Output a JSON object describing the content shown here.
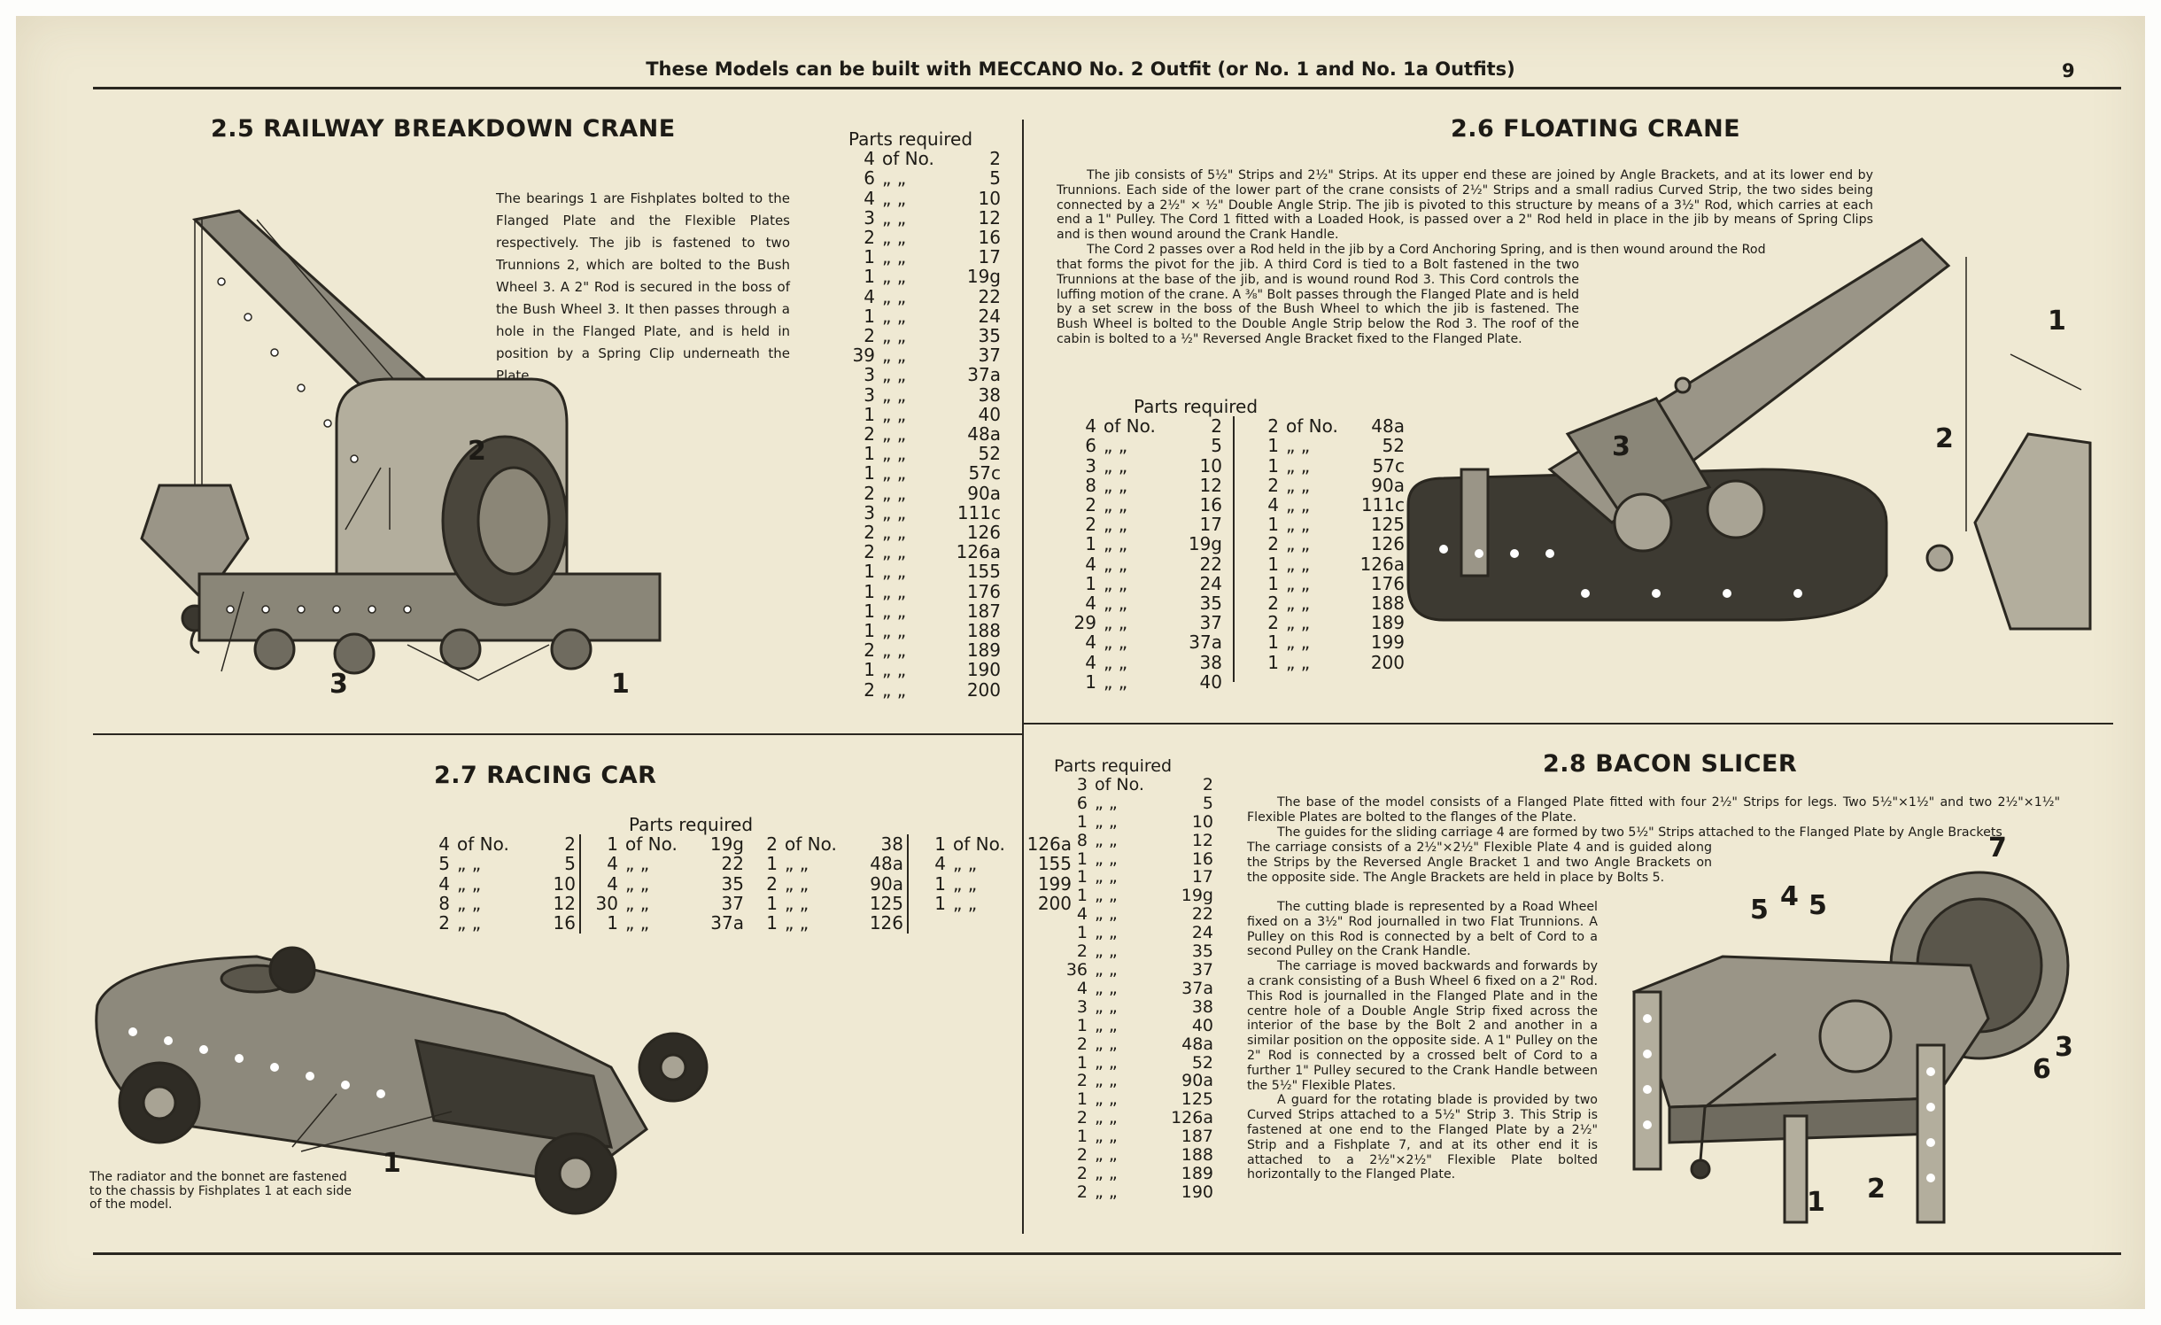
{
  "header": {
    "title": "These Models can be built with MECCANO No. 2 Outfit (or No. 1 and No. 1a Outfits)",
    "page_number": "9"
  },
  "sections": {
    "railway_crane": {
      "title": "2.5  RAILWAY BREAKDOWN CRANE",
      "description": "The bearings 1 are Fishplates bolted to the Flanged Plate and the Flexible Plates respectively. The jib is fastened to two Trunnions 2, which are bolted to the Bush Wheel 3. A 2\" Rod is secured in the boss of the Bush Wheel 3. It then passes through a hole in the Flanged Plate, and is held in position by a Spring Clip underneath the Plate.",
      "parts_heading": "Parts  required",
      "parts": [
        {
          "qty": "4",
          "of": "of No.",
          "no": "2"
        },
        {
          "qty": "6",
          "of": "„   „",
          "no": "5"
        },
        {
          "qty": "4",
          "of": "„   „",
          "no": "10"
        },
        {
          "qty": "3",
          "of": "„   „",
          "no": "12"
        },
        {
          "qty": "2",
          "of": "„   „",
          "no": "16"
        },
        {
          "qty": "1",
          "of": "„   „",
          "no": "17"
        },
        {
          "qty": "1",
          "of": "„   „",
          "no": "19g"
        },
        {
          "qty": "4",
          "of": "„   „",
          "no": "22"
        },
        {
          "qty": "1",
          "of": "„   „",
          "no": "24"
        },
        {
          "qty": "2",
          "of": "„   „",
          "no": "35"
        },
        {
          "qty": "39",
          "of": "„   „",
          "no": "37"
        },
        {
          "qty": "3",
          "of": "„   „",
          "no": "37a"
        },
        {
          "qty": "3",
          "of": "„   „",
          "no": "38"
        },
        {
          "qty": "1",
          "of": "„   „",
          "no": "40"
        },
        {
          "qty": "2",
          "of": "„   „",
          "no": "48a"
        },
        {
          "qty": "1",
          "of": "„   „",
          "no": "52"
        },
        {
          "qty": "1",
          "of": "„   „",
          "no": "57c"
        },
        {
          "qty": "2",
          "of": "„   „",
          "no": "90a"
        },
        {
          "qty": "3",
          "of": "„   „",
          "no": "111c"
        },
        {
          "qty": "2",
          "of": "„   „",
          "no": "126"
        },
        {
          "qty": "2",
          "of": "„   „",
          "no": "126a"
        },
        {
          "qty": "1",
          "of": "„   „",
          "no": "155"
        },
        {
          "qty": "1",
          "of": "„   „",
          "no": "176"
        },
        {
          "qty": "1",
          "of": "„   „",
          "no": "187"
        },
        {
          "qty": "1",
          "of": "„   „",
          "no": "188"
        },
        {
          "qty": "2",
          "of": "„   „",
          "no": "189"
        },
        {
          "qty": "1",
          "of": "„   „",
          "no": "190"
        },
        {
          "qty": "2",
          "of": "„   „",
          "no": "200"
        }
      ],
      "callouts": [
        "2",
        "3",
        "1"
      ]
    },
    "floating_crane": {
      "title": "2.6  FLOATING CRANE",
      "description_wide": [
        "The jib consists of 5½\" Strips and 2½\" Strips.  At its upper end these are joined by Angle Brackets, and at its lower end by Trunnions. Each side of the lower part of the crane consists of 2½\" Strips and a small radius Curved Strip, the two sides being connected by a 2½\" × ½\" Double Angle Strip. The jib is pivoted to this structure by means of a 3½\" Rod, which carries at each end a 1\" Pulley. The Cord 1 fitted with a Loaded Hook, is passed over a 2\" Rod held in place in the jib by means of Spring Clips and is then wound around the Crank Handle.",
        "The Cord 2 passes over a Rod held in the jib by a Cord Anchoring Spring, and is then wound around the Rod"
      ],
      "description_narrow": "that forms the pivot for the jib. A third Cord is tied to a Bolt fastened in the two Trunnions at the base of the jib, and is wound round Rod 3. This Cord controls the luffing motion of the crane.  A ⅜\" Bolt passes through the Flanged Plate and is held by a set screw in the boss of the Bush Wheel to which the jib is fastened. The Bush Wheel is bolted to the Double Angle Strip below the Rod 3.  The roof of the cabin is bolted to a ½\" Reversed Angle Bracket fixed to the Flanged Plate.",
      "parts_heading": "Parts  required",
      "parts_col1": [
        {
          "qty": "4",
          "of": "of No.",
          "no": "2"
        },
        {
          "qty": "6",
          "of": "„   „",
          "no": "5"
        },
        {
          "qty": "3",
          "of": "„   „",
          "no": "10"
        },
        {
          "qty": "8",
          "of": "„   „",
          "no": "12"
        },
        {
          "qty": "2",
          "of": "„   „",
          "no": "16"
        },
        {
          "qty": "2",
          "of": "„   „",
          "no": "17"
        },
        {
          "qty": "1",
          "of": "„   „",
          "no": "19g"
        },
        {
          "qty": "4",
          "of": "„   „",
          "no": "22"
        },
        {
          "qty": "1",
          "of": "„   „",
          "no": "24"
        },
        {
          "qty": "4",
          "of": "„   „",
          "no": "35"
        },
        {
          "qty": "29",
          "of": "„   „",
          "no": "37"
        },
        {
          "qty": "4",
          "of": "„   „",
          "no": "37a"
        },
        {
          "qty": "4",
          "of": "„   „",
          "no": "38"
        },
        {
          "qty": "1",
          "of": "„   „",
          "no": "40"
        }
      ],
      "parts_col2": [
        {
          "qty": "2",
          "of": "of No.",
          "no": "48a"
        },
        {
          "qty": "1",
          "of": "„   „",
          "no": "52"
        },
        {
          "qty": "1",
          "of": "„   „",
          "no": "57c"
        },
        {
          "qty": "2",
          "of": "„   „",
          "no": "90a"
        },
        {
          "qty": "4",
          "of": "„   „",
          "no": "111c"
        },
        {
          "qty": "1",
          "of": "„   „",
          "no": "125"
        },
        {
          "qty": "2",
          "of": "„   „",
          "no": "126"
        },
        {
          "qty": "1",
          "of": "„   „",
          "no": "126a"
        },
        {
          "qty": "1",
          "of": "„   „",
          "no": "176"
        },
        {
          "qty": "2",
          "of": "„   „",
          "no": "188"
        },
        {
          "qty": "2",
          "of": "„   „",
          "no": "189"
        },
        {
          "qty": "1",
          "of": "„   „",
          "no": "199"
        },
        {
          "qty": "1",
          "of": "„   „",
          "no": "200"
        }
      ],
      "callouts": [
        "1",
        "2",
        "3"
      ]
    },
    "racing_car": {
      "title": "2.7  RACING CAR",
      "parts_heading": "Parts  required",
      "parts_cols": [
        [
          {
            "qty": "4",
            "of": "of No.",
            "no": "2"
          },
          {
            "qty": "5",
            "of": "„   „",
            "no": "5"
          },
          {
            "qty": "4",
            "of": "„   „",
            "no": "10"
          },
          {
            "qty": "8",
            "of": "„   „",
            "no": "12"
          },
          {
            "qty": "2",
            "of": "„   „",
            "no": "16"
          }
        ],
        [
          {
            "qty": "1",
            "of": "of No.",
            "no": "19g"
          },
          {
            "qty": "4",
            "of": "„   „",
            "no": "22"
          },
          {
            "qty": "4",
            "of": "„   „",
            "no": "35"
          },
          {
            "qty": "30",
            "of": "„   „",
            "no": "37"
          },
          {
            "qty": "1",
            "of": "„   „",
            "no": "37a"
          }
        ],
        [
          {
            "qty": "2",
            "of": "of No.",
            "no": "38"
          },
          {
            "qty": "1",
            "of": "„   „",
            "no": "48a"
          },
          {
            "qty": "2",
            "of": "„   „",
            "no": "90a"
          },
          {
            "qty": "1",
            "of": "„   „",
            "no": "125"
          },
          {
            "qty": "1",
            "of": "„   „",
            "no": "126"
          }
        ],
        [
          {
            "qty": "1",
            "of": "of No.",
            "no": "126a"
          },
          {
            "qty": "4",
            "of": "„   „",
            "no": "155"
          },
          {
            "qty": "1",
            "of": "„   „",
            "no": "199"
          },
          {
            "qty": "1",
            "of": "„   „",
            "no": "200"
          }
        ]
      ],
      "caption": "The radiator and the bonnet are fastened to the chassis by Fishplates 1 at each side of the model.",
      "callouts": [
        "1"
      ]
    },
    "bacon_slicer": {
      "title": "2.8  BACON SLICER",
      "parts_heading": "Parts  required",
      "parts": [
        {
          "qty": "3",
          "of": "of No.",
          "no": "2"
        },
        {
          "qty": "6",
          "of": "„   „",
          "no": "5"
        },
        {
          "qty": "1",
          "of": "„   „",
          "no": "10"
        },
        {
          "qty": "8",
          "of": "„   „",
          "no": "12"
        },
        {
          "qty": "1",
          "of": "„   „",
          "no": "16"
        },
        {
          "qty": "1",
          "of": "„   „",
          "no": "17"
        },
        {
          "qty": "1",
          "of": "„   „",
          "no": "19g"
        },
        {
          "qty": "4",
          "of": "„   „",
          "no": "22"
        },
        {
          "qty": "1",
          "of": "„   „",
          "no": "24"
        },
        {
          "qty": "2",
          "of": "„   „",
          "no": "35"
        },
        {
          "qty": "36",
          "of": "„   „",
          "no": "37"
        },
        {
          "qty": "4",
          "of": "„   „",
          "no": "37a"
        },
        {
          "qty": "3",
          "of": "„   „",
          "no": "38"
        },
        {
          "qty": "1",
          "of": "„   „",
          "no": "40"
        },
        {
          "qty": "2",
          "of": "„   „",
          "no": "48a"
        },
        {
          "qty": "1",
          "of": "„   „",
          "no": "52"
        },
        {
          "qty": "2",
          "of": "„   „",
          "no": "90a"
        },
        {
          "qty": "1",
          "of": "„   „",
          "no": "125"
        },
        {
          "qty": "2",
          "of": "„   „",
          "no": "126a"
        },
        {
          "qty": "1",
          "of": "„   „",
          "no": "187"
        },
        {
          "qty": "2",
          "of": "„   „",
          "no": "188"
        },
        {
          "qty": "2",
          "of": "„   „",
          "no": "189"
        },
        {
          "qty": "2",
          "of": "„   „",
          "no": "190"
        }
      ],
      "description_wide": [
        "The base of the model consists of a Flanged Plate fitted with four 2½\" Strips for legs.  Two 5½\"×1½\" and two 2½\"×1½\" Flexible Plates are bolted to the flanges of the Plate.",
        "The guides for the sliding carriage 4 are formed by two 5½\" Strips attached to the Flanged Plate by Angle Brackets"
      ],
      "description_mid": "The carriage consists of a 2½\"×2½\" Flexible Plate 4 and is guided along the Strips by the Reversed Angle Bracket 1 and two Angle Brackets on the opposite side.  The Angle Brackets are held in place by Bolts 5.",
      "description_narrow": [
        "The cutting blade is represented by a Road Wheel fixed on a 3½\" Rod journalled in two Flat Trunnions.  A Pulley on this Rod is connected by a belt of Cord to a second Pulley on the Crank Handle.",
        "The carriage is moved backwards and forwards by a crank consisting of a Bush Wheel 6 fixed on a 2\" Rod. This Rod is journalled in the Flanged Plate and in the centre hole of a Double Angle Strip fixed across the interior of the base by the Bolt 2 and another in a similar position on the opposite side.  A 1\" Pulley on the 2\" Rod is connected by a crossed belt of Cord to a further 1\" Pulley secured to the Crank Handle between the 5½\" Flexible Plates.",
        "A guard for the rotating blade is provided by two Curved Strips attached to a 5½\" Strip 3. This Strip is fastened at one end to the Flanged Plate by a 2½\" Strip and a Fishplate 7, and at its other end it is attached to a 2½\"×2½\" Flexible Plate bolted horizontally to the Flanged Plate."
      ],
      "callouts": [
        "5",
        "4",
        "5",
        "7",
        "3",
        "6",
        "1",
        "2"
      ]
    }
  },
  "colors": {
    "paper": "#efe9d3",
    "ink": "#1d1b16",
    "metal": "#7a776c"
  }
}
